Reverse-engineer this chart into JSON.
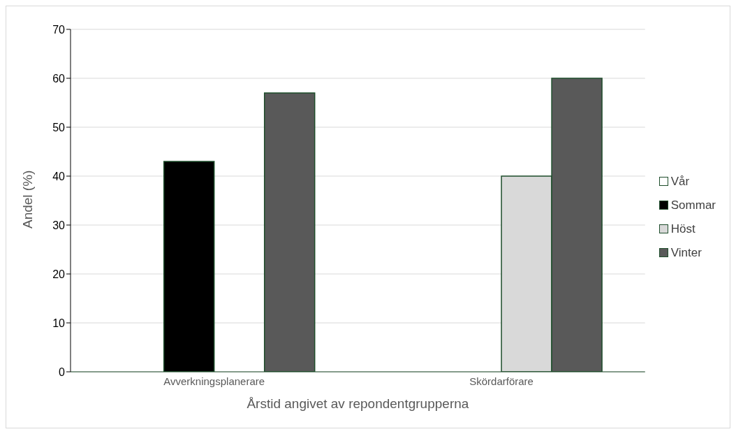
{
  "chart_data": {
    "type": "bar",
    "xlabel": "Årstid angivet av repondentgrupperna",
    "ylabel": "Andel (%)",
    "categories": [
      "Avverkningsplanerare",
      "Skördarförare"
    ],
    "series": [
      {
        "name": "Vår",
        "color": "#ffffff",
        "values": [
          0,
          0
        ]
      },
      {
        "name": "Sommar",
        "color": "#000000",
        "values": [
          43,
          0
        ]
      },
      {
        "name": "Höst",
        "color": "#d9d9d9",
        "values": [
          0,
          40
        ]
      },
      {
        "name": "Vinter",
        "color": "#595959",
        "values": [
          57,
          60
        ]
      }
    ],
    "ylim": [
      0,
      70
    ],
    "yticks": [
      0,
      10,
      20,
      30,
      40,
      50,
      60,
      70
    ],
    "grid": "y",
    "legend": "right"
  }
}
